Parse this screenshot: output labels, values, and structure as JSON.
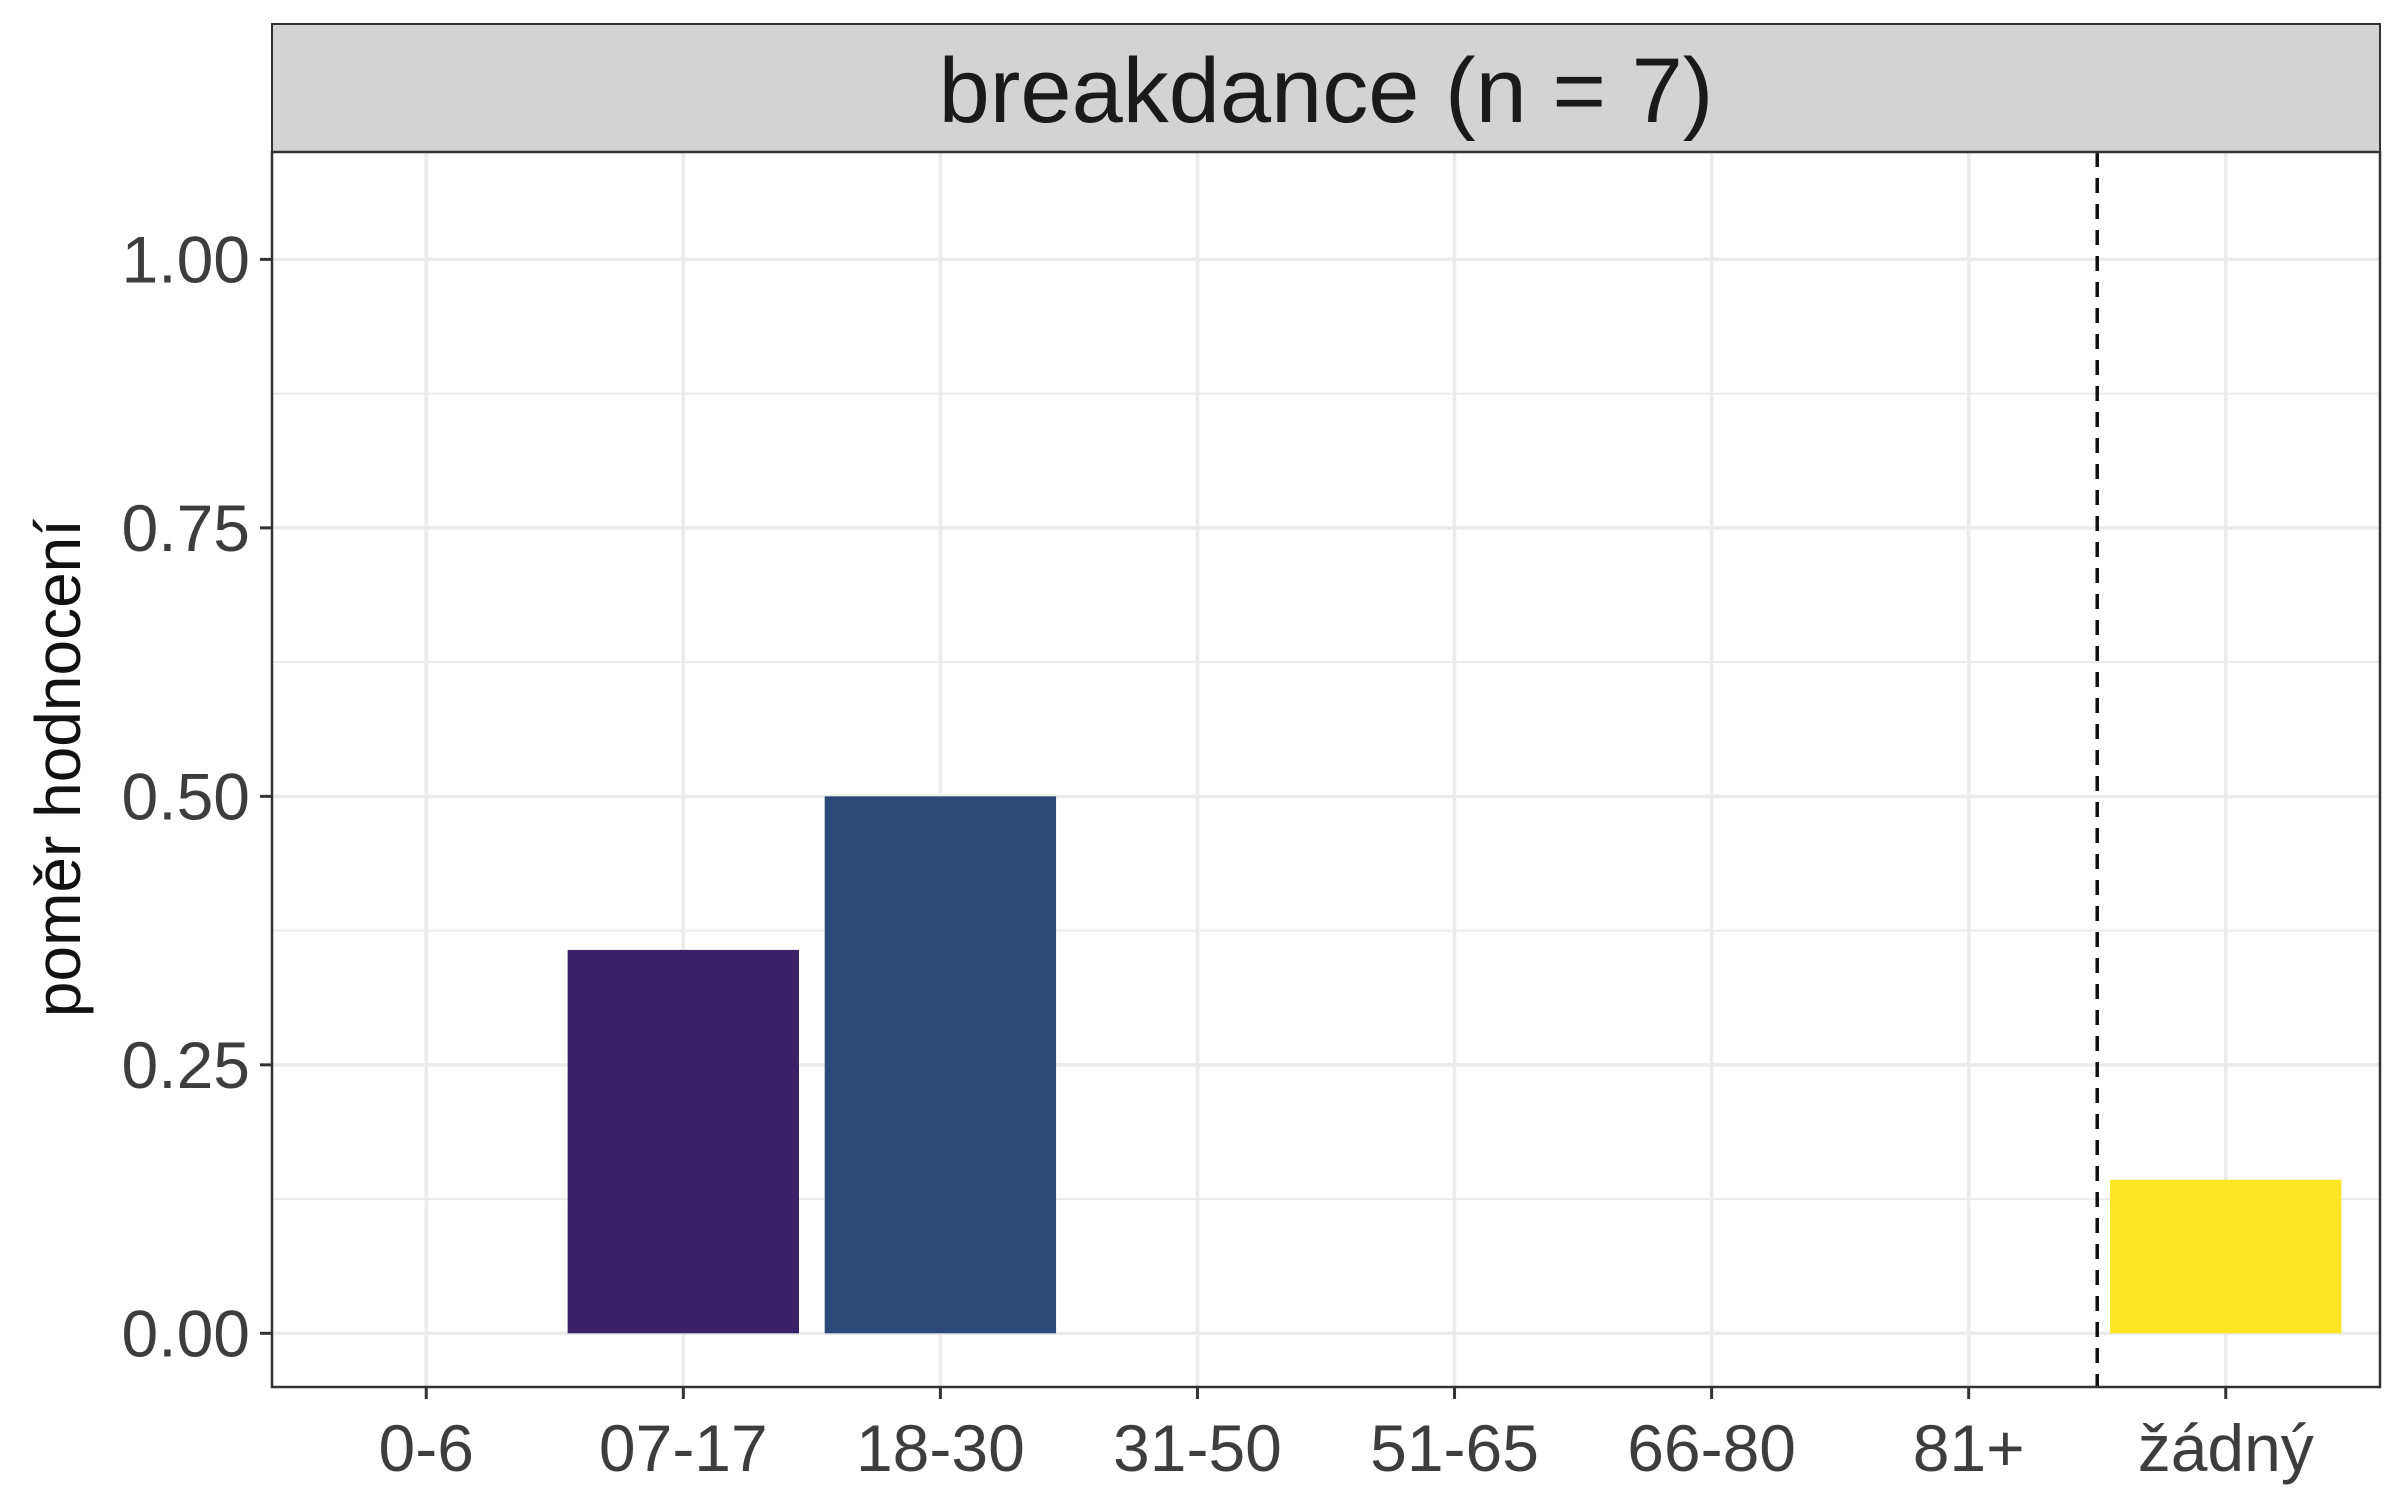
{
  "chart_data": {
    "type": "bar",
    "title": "breakdance (n = 7)",
    "xlabel": "",
    "ylabel": "poměr hodnocení",
    "categories": [
      "0-6",
      "07-17",
      "18-30",
      "31-50",
      "51-65",
      "66-80",
      "81+",
      "žádný"
    ],
    "values": [
      0,
      0.357,
      0.5,
      0,
      0,
      0,
      0,
      0.143
    ],
    "bar_colors": [
      "#440154",
      "#3A2168",
      "#2C4A78",
      "#21908C",
      "#3BBB75",
      "#7AD151",
      "#C2DF23",
      "#FDE725"
    ],
    "ylim": [
      -0.05,
      1.1
    ],
    "yticks": [
      "0.00",
      "0.25",
      "0.50",
      "0.75",
      "1.00"
    ],
    "ytick_values": [
      0,
      0.25,
      0.5,
      0.75,
      1.0
    ],
    "reference_line": {
      "style": "dashed",
      "between": [
        "81+",
        "žádný"
      ]
    },
    "grid": true,
    "legend": "none"
  },
  "colors": {
    "strip_background": "#D3D3D3",
    "grid": "#EBEBEB",
    "panel_border": "#333333"
  }
}
